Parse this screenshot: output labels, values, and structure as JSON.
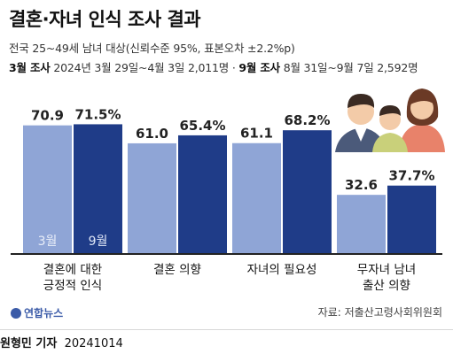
{
  "header": {
    "title": "결혼·자녀 인식 조사 결과",
    "subtitle": "전국 25~49세 남녀 대상(신뢰수준 95%, 표본오차 ±2.2%p)",
    "march_label": "3월 조사",
    "march_detail": " 2024년 3월 29일~4월 3일 2,011명 · ",
    "sept_label": "9월 조사",
    "sept_detail": " 8월 31일~9월 7일 2,592명"
  },
  "chart_data": {
    "type": "bar",
    "categories": [
      "결혼에 대한\n긍정적 인식",
      "결혼 의향",
      "자녀의 필요성",
      "무자녀 남녀\n출산 의향"
    ],
    "series": [
      {
        "name": "3월",
        "values": [
          70.9,
          61.0,
          61.1,
          32.6
        ],
        "labels": [
          "70.9",
          "61.0",
          "61.1",
          "32.6"
        ],
        "color": "#8fa5d6"
      },
      {
        "name": "9월",
        "values": [
          71.5,
          65.4,
          68.2,
          37.7
        ],
        "labels": [
          "71.5%",
          "65.4%",
          "68.2%",
          "37.7%"
        ],
        "color": "#1f3c88"
      }
    ],
    "ylim": [
      0,
      100
    ]
  },
  "colors": {
    "march": "#8fa5d6",
    "sept": "#1f3c88",
    "baseline": "#222222"
  },
  "illustration": "family-icon",
  "logo": {
    "text": "연합뉴스"
  },
  "source": "자료: 저출산고령사회위원회",
  "footer": {
    "reporter": "원형민 기자",
    "date": "20241014"
  }
}
